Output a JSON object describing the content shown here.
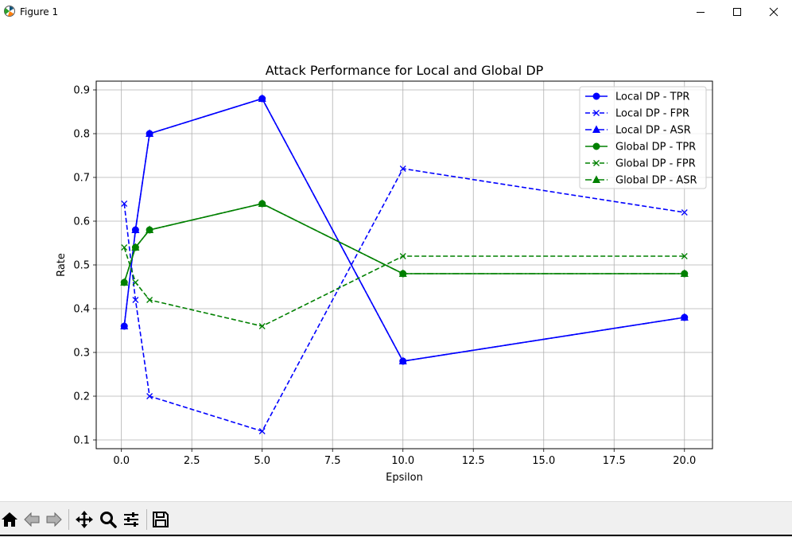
{
  "window": {
    "title": "Figure 1",
    "icons": [
      "matplotlib-logo-icon",
      "minimize-icon",
      "maximize-icon",
      "close-icon"
    ]
  },
  "toolbar": {
    "icons": [
      "home-icon",
      "back-arrow-icon",
      "forward-arrow-icon",
      "pan-icon",
      "zoom-icon",
      "configure-subplots-icon",
      "save-icon"
    ]
  },
  "chart_data": {
    "type": "line",
    "title": "Attack Performance for Local and Global DP",
    "xlabel": "Epsilon",
    "ylabel": "Rate",
    "x": [
      0.1,
      0.5,
      1.0,
      5.0,
      10.0,
      20.0
    ],
    "xlim": [
      -0.895,
      20.995
    ],
    "ylim": [
      0.08,
      0.92
    ],
    "xticks": [
      0.0,
      2.5,
      5.0,
      7.5,
      10.0,
      12.5,
      15.0,
      17.5,
      20.0
    ],
    "xtick_labels": [
      "0.0",
      "2.5",
      "5.0",
      "7.5",
      "10.0",
      "12.5",
      "15.0",
      "17.5",
      "20.0"
    ],
    "yticks": [
      0.1,
      0.2,
      0.3,
      0.4,
      0.5,
      0.6,
      0.7,
      0.8,
      0.9
    ],
    "ytick_labels": [
      "0.1",
      "0.2",
      "0.3",
      "0.4",
      "0.5",
      "0.6",
      "0.7",
      "0.8",
      "0.9"
    ],
    "grid": true,
    "legend_position": "top-right",
    "series": [
      {
        "name": "Local DP - TPR",
        "color": "#0000ff",
        "linestyle": "solid",
        "marker": "circle",
        "values": [
          0.36,
          0.58,
          0.8,
          0.88,
          0.28,
          0.38
        ]
      },
      {
        "name": "Local DP - FPR",
        "color": "#0000ff",
        "linestyle": "dashed",
        "marker": "x",
        "values": [
          0.64,
          0.42,
          0.2,
          0.12,
          0.72,
          0.62
        ]
      },
      {
        "name": "Local DP - ASR",
        "color": "#0000ff",
        "linestyle": "dashdot",
        "marker": "triangle",
        "values": [
          0.36,
          0.58,
          0.8,
          0.88,
          0.28,
          0.38
        ]
      },
      {
        "name": "Global DP - TPR",
        "color": "#008000",
        "linestyle": "solid",
        "marker": "circle",
        "values": [
          0.46,
          0.54,
          0.58,
          0.64,
          0.48,
          0.48
        ]
      },
      {
        "name": "Global DP - FPR",
        "color": "#008000",
        "linestyle": "dashed",
        "marker": "x",
        "values": [
          0.54,
          0.46,
          0.42,
          0.36,
          0.52,
          0.52
        ]
      },
      {
        "name": "Global DP - ASR",
        "color": "#008000",
        "linestyle": "dashdot",
        "marker": "triangle",
        "values": [
          0.46,
          0.54,
          0.58,
          0.64,
          0.48,
          0.48
        ]
      }
    ]
  }
}
